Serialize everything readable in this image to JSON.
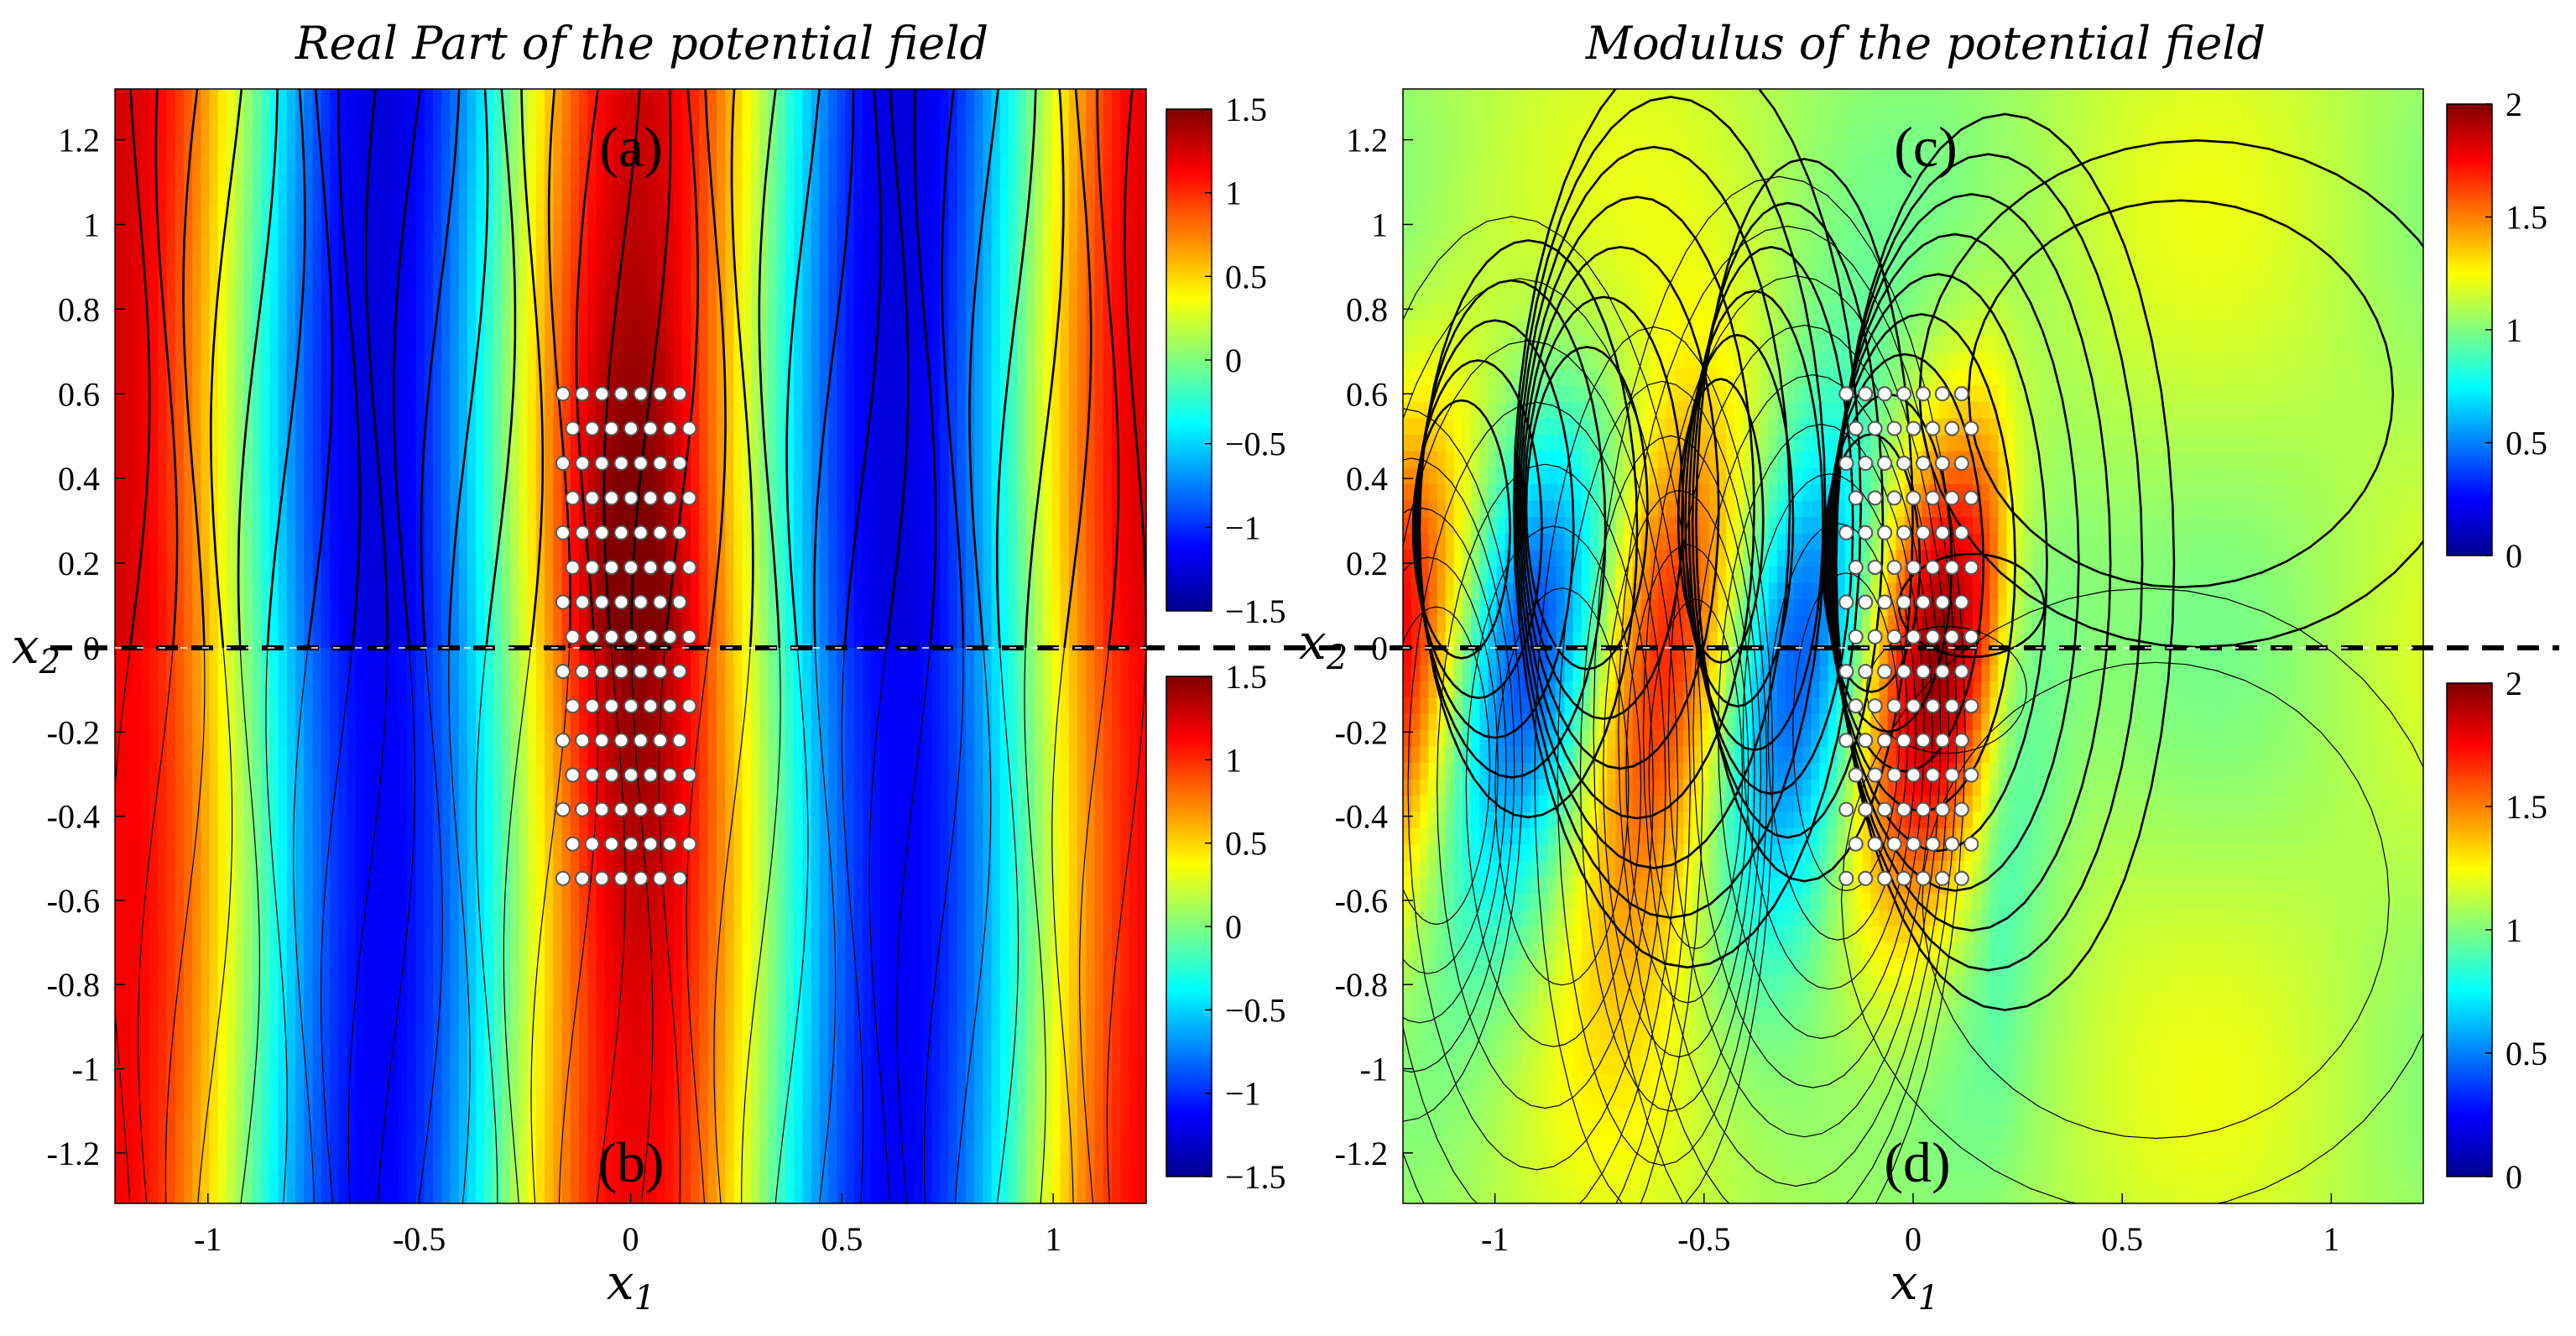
{
  "chart_data": [
    {
      "type": "heatmap",
      "panel": "left",
      "title": "Real Part of the potential field",
      "xlabel": "x",
      "xlabel_sub": "1",
      "ylabel": "x",
      "ylabel_sub": "2",
      "xlim": [
        -1.22,
        1.22
      ],
      "ylim": [
        -1.32,
        1.32
      ],
      "xticks": [
        -1,
        -0.5,
        0,
        0.5,
        1
      ],
      "xtick_labels": [
        "-1",
        "-0.5",
        "0",
        "0.5",
        "1"
      ],
      "yticks": [
        1.2,
        1,
        0.8,
        0.6,
        0.4,
        0.2,
        0,
        -0.2,
        -0.4,
        -0.6,
        -0.8,
        -1,
        -1.2
      ],
      "ytick_labels": [
        "1.2",
        "1",
        "0.8",
        "0.6",
        "0.4",
        "0.2",
        "0",
        "-0.2",
        "-0.4",
        "-0.6",
        "-0.8",
        "-1",
        "-1.2"
      ],
      "colormap": "jet",
      "subplots": [
        {
          "label": "(a)",
          "region": "upper",
          "x2_range": [
            0,
            1.32
          ],
          "colorbar": {
            "range": [
              -1.5,
              1.5
            ],
            "ticks": [
              1.5,
              1,
              0.5,
              0,
              -0.5,
              -1,
              -1.5
            ],
            "tick_labels": [
              "1.5",
              "1",
              "0.5",
              "0",
              "−0.5",
              "−1",
              "−1.5"
            ]
          }
        },
        {
          "label": "(b)",
          "region": "lower",
          "x2_range": [
            -1.32,
            0
          ],
          "colorbar": {
            "range": [
              -1.5,
              1.5
            ],
            "ticks": [
              1.5,
              1,
              0.5,
              0,
              -0.5,
              -1,
              -1.5
            ],
            "tick_labels": [
              "1.5",
              "1",
              "0.5",
              "0",
              "−0.5",
              "−1",
              "−1.5"
            ]
          }
        }
      ]
    },
    {
      "type": "heatmap",
      "panel": "right",
      "title": "Modulus of the potential field",
      "xlabel": "x",
      "xlabel_sub": "1",
      "ylabel": "x",
      "ylabel_sub": "2",
      "xlim": [
        -1.22,
        1.22
      ],
      "ylim": [
        -1.32,
        1.32
      ],
      "xticks": [
        -1,
        -0.5,
        0,
        0.5,
        1
      ],
      "xtick_labels": [
        "-1",
        "-0.5",
        "0",
        "0.5",
        "1"
      ],
      "yticks": [
        1.2,
        1,
        0.8,
        0.6,
        0.4,
        0.2,
        0,
        -0.2,
        -0.4,
        -0.6,
        -0.8,
        -1,
        -1.2
      ],
      "ytick_labels": [
        "1.2",
        "1",
        "0.8",
        "0.6",
        "0.4",
        "0.2",
        "0",
        "-0.2",
        "-0.4",
        "-0.6",
        "-0.8",
        "-1",
        "-1.2"
      ],
      "colormap": "jet",
      "subplots": [
        {
          "label": "(c)",
          "region": "upper",
          "x2_range": [
            0,
            1.32
          ],
          "colorbar": {
            "range": [
              0,
              2
            ],
            "ticks": [
              2,
              1.5,
              1,
              0.5,
              0
            ],
            "tick_labels": [
              "2",
              "1.5",
              "1",
              "0.5",
              "0"
            ]
          }
        },
        {
          "label": "(d)",
          "region": "lower",
          "x2_range": [
            -1.32,
            0
          ],
          "colorbar": {
            "range": [
              0,
              2
            ],
            "ticks": [
              2,
              1.5,
              1,
              0.5,
              0
            ],
            "tick_labels": [
              "2",
              "1.5",
              "1",
              "0.5",
              "0"
            ]
          }
        }
      ]
    }
  ],
  "scatterer": {
    "description_shape": "hexagonal lattice of cylinders",
    "x1_range": [
      -0.16,
      0.16
    ],
    "x2_range": [
      -0.58,
      0.6
    ],
    "rows": 15,
    "row_spacing": 0.082,
    "col_spacing": 0.046
  },
  "colors": {
    "interface_dash": "#000000",
    "ball_fill": "#ffffff"
  }
}
